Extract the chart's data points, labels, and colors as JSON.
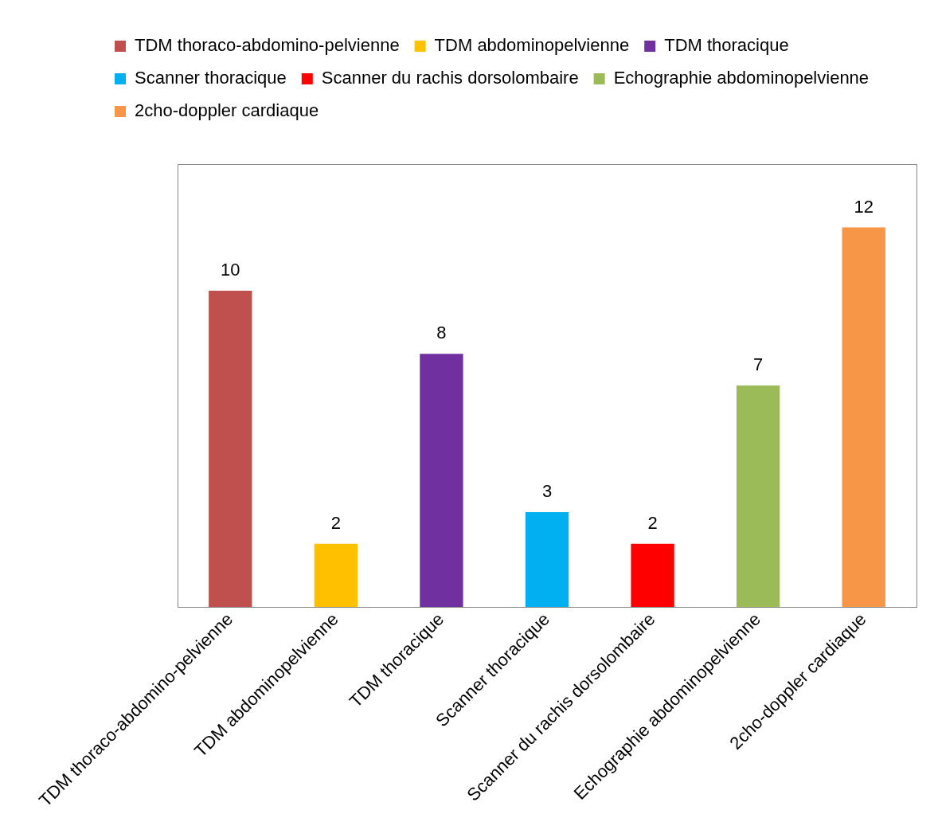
{
  "chart_data": {
    "type": "bar",
    "categories": [
      "TDM thoraco-abdomino-pelvienne",
      "TDM abdominopelvienne",
      "TDM thoracique",
      "Scanner thoracique",
      "Scanner du rachis dorsolombaire",
      "Echographie abdominopelvienne",
      "2cho-doppler cardiaque"
    ],
    "series": [
      {
        "name": "TDM thoraco-abdomino-pelvienne",
        "color": "#c0504d",
        "values": [
          10,
          null,
          null,
          null,
          null,
          null,
          null
        ]
      },
      {
        "name": "TDM abdominopelvienne",
        "color": "#ffc000",
        "values": [
          null,
          2,
          null,
          null,
          null,
          null,
          null
        ]
      },
      {
        "name": "TDM thoracique",
        "color": "#7030a0",
        "values": [
          null,
          null,
          8,
          null,
          null,
          null,
          null
        ]
      },
      {
        "name": "Scanner thoracique",
        "color": "#00b0f0",
        "values": [
          null,
          null,
          null,
          3,
          null,
          null,
          null
        ]
      },
      {
        "name": "Scanner du rachis dorsolombaire",
        "color": "#ff0000",
        "values": [
          null,
          null,
          null,
          null,
          2,
          null,
          null
        ]
      },
      {
        "name": "Echographie abdominopelvienne",
        "color": "#9bbb59",
        "values": [
          null,
          null,
          null,
          null,
          null,
          7,
          null
        ]
      },
      {
        "name": "2cho-doppler cardiaque",
        "color": "#f79646",
        "values": [
          null,
          null,
          null,
          null,
          null,
          null,
          12
        ]
      }
    ],
    "ylim": [
      0,
      14
    ],
    "tick_labels": "x",
    "data_labels": true,
    "grid": false,
    "legend": "top"
  }
}
